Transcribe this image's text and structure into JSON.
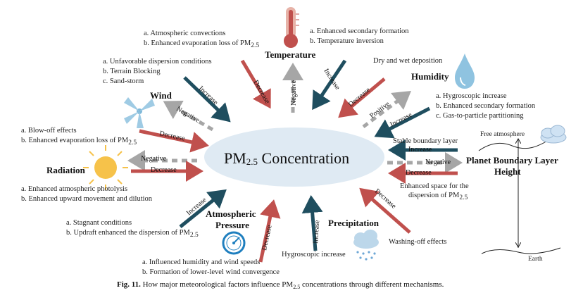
{
  "center": {
    "title": "PM",
    "sub": "2.5",
    "suffix": " Concentration"
  },
  "temperature": {
    "label": "Temperature",
    "left_a": "a. Atmospheric convections",
    "left_b": "b. Enhanced evaporation loss of PM",
    "left_b_sub": "2.5",
    "right_a": "a. Enhanced secondary formation",
    "right_b": "b. Temperature inversion",
    "arrow_decrease": "Decrease",
    "arrow_negative": "Negative",
    "arrow_increase": "Increase"
  },
  "humidity": {
    "label": "Humidity",
    "dep": "Dry and wet deposition",
    "list_a": "a. Hygroscopic increase",
    "list_b": "b. Enhanced secondary formation",
    "list_c": "c. Gas-to-particle partitioning",
    "arrow_decrease": "Decrease",
    "arrow_positive": "Positive",
    "arrow_increase": "Increase"
  },
  "wind": {
    "label": "Wind",
    "list_a": "a. Unfavorable dispersion conditions",
    "list_b": "b. Terrain Blocking",
    "list_c": "c. Sand-storm",
    "arrow_increase": "Increase",
    "arrow_negative": "Negative",
    "arrow_decrease": "Decrease",
    "blow_a": "a. Blow-off effects",
    "blow_b": "b. Enhanced evaporation loss of PM",
    "blow_b_sub": "2.5"
  },
  "radiation": {
    "label": "Radiation",
    "arrow_negative": "Negative",
    "arrow_decrease": "Decrease",
    "list_a": "a. Enhanced atmospheric photolysis",
    "list_b": "b. Enhanced upward movement and dilution"
  },
  "pbl": {
    "label_line1": "Planet Boundary Layer",
    "label_line2": "Height",
    "free_atmosphere": "Free atmosphere",
    "earth": "Earth",
    "stable": "Stable boundary layer",
    "arrow_increase": "Increase",
    "arrow_negative": "Negative",
    "arrow_decrease": "Decrease",
    "space_line1": "Enhanced space for the",
    "space_line2": "dispersion of PM",
    "space_sub": "2.5"
  },
  "pressure": {
    "label_line1": "Atmospheric",
    "label_line2": "Pressure",
    "arrow_increase": "Increase",
    "arrow_decrease": "Decrease",
    "left_a": "a. Stagnant conditions",
    "left_b": "b. Updraft enhanced the dispersion of PM",
    "left_b_sub": "2.5",
    "bottom_a": "a. Influenced humidity and wind speeds",
    "bottom_b": "b. Formation of lower-level wind convergence"
  },
  "precipitation": {
    "label": "Precipitation",
    "arrow_increase": "Increase",
    "arrow_decrease": "Decrease",
    "hygro": "Hygroscopic increase",
    "washing": "Washing-off effects"
  },
  "caption": {
    "fig": "Fig. 11.",
    "text": " How major meteorological factors influence PM",
    "sub": "2.5",
    "tail": " concentrations through different mechanisms."
  },
  "colors": {
    "red": "#c0504d",
    "teal": "#1f4e5f",
    "gray": "#a6a6a6",
    "ellipse": "#dfeaf3"
  }
}
